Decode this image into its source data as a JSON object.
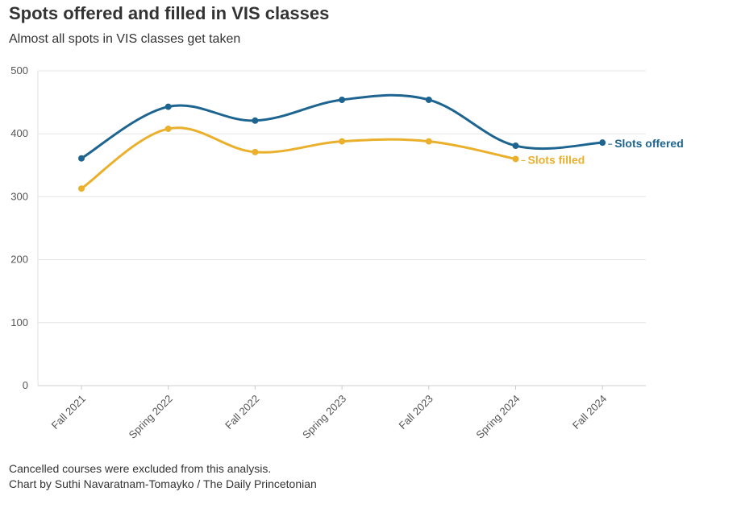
{
  "header": {
    "title": "Spots offered and filled in VIS classes",
    "subtitle": "Almost all spots in VIS classes get taken"
  },
  "footer": {
    "note": "Cancelled courses were excluded from this analysis.",
    "credit": "Chart by Suthi Navaratnam-Tomayko / The Daily Princetonian"
  },
  "chart_data": {
    "type": "line",
    "title": "Spots offered and filled in VIS classes",
    "subtitle": "Almost all spots in VIS classes get taken",
    "xlabel": "",
    "ylabel": "",
    "ylim": [
      0,
      500
    ],
    "yticks": [
      0,
      100,
      200,
      300,
      400,
      500
    ],
    "grid": true,
    "categories": [
      "Fall 2021",
      "Spring 2022",
      "Fall 2022",
      "Spring 2023",
      "Fall 2023",
      "Spring 2024",
      "Fall 2024"
    ],
    "series": [
      {
        "name": "Slots offered",
        "color": "#1d6590",
        "values": [
          361,
          443,
          421,
          454,
          454,
          381,
          386
        ]
      },
      {
        "name": "Slots filled",
        "color": "#eab02c",
        "values": [
          313,
          408,
          371,
          388,
          388,
          360,
          null
        ]
      }
    ]
  }
}
